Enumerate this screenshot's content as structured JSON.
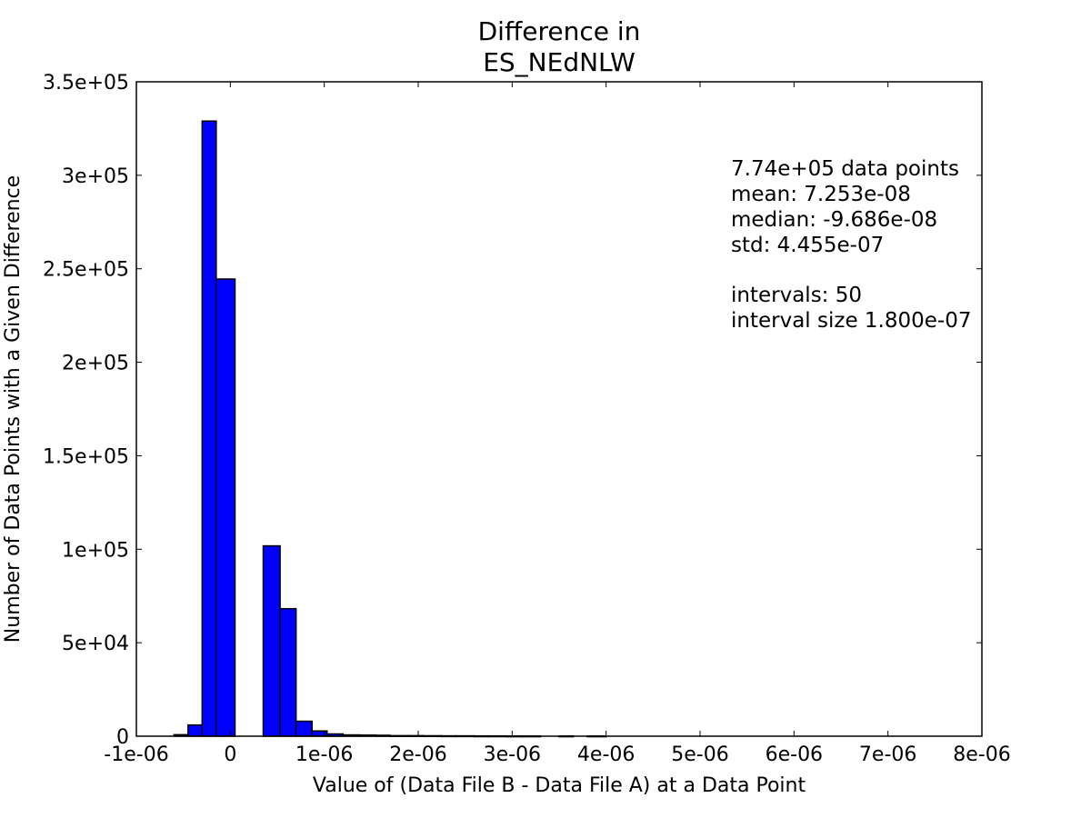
{
  "chart_data": {
    "type": "bar",
    "title": [
      "Difference in",
      "ES_NEdNLW"
    ],
    "xlabel": "Value of (Data File B - Data File A) at a Data Point",
    "ylabel": "Number of Data Points with a Given Difference",
    "xlim": [
      -1e-06,
      8e-06
    ],
    "ylim": [
      0,
      350000
    ],
    "xticks": [
      -1e-06,
      0,
      1e-06,
      2e-06,
      3e-06,
      4e-06,
      5e-06,
      6e-06,
      7e-06,
      8e-06
    ],
    "xtick_labels": [
      "-1e-06",
      "0",
      "1e-06",
      "2e-06",
      "3e-06",
      "4e-06",
      "5e-06",
      "6e-06",
      "7e-06",
      "8e-06"
    ],
    "yticks": [
      0,
      50000,
      100000,
      150000,
      200000,
      250000,
      300000,
      350000
    ],
    "ytick_labels": [
      "0",
      "5e+04",
      "1e+05",
      "1.5e+05",
      "2e+05",
      "2.5e+05",
      "3e+05",
      "3.5e+05"
    ],
    "grid": false,
    "bar_color": "#0000ff",
    "bins": [
      {
        "x0": -6e-07,
        "x1": -4.5e-07,
        "count": 800
      },
      {
        "x0": -4.5e-07,
        "x1": -3e-07,
        "count": 6000
      },
      {
        "x0": -3e-07,
        "x1": -1.5e-07,
        "count": 329000
      },
      {
        "x0": -1.5e-07,
        "x1": 5e-08,
        "count": 244500
      },
      {
        "x0": 3.5e-07,
        "x1": 5.3e-07,
        "count": 101800
      },
      {
        "x0": 5.3e-07,
        "x1": 7e-07,
        "count": 68200
      },
      {
        "x0": 7e-07,
        "x1": 8.7e-07,
        "count": 8000
      },
      {
        "x0": 8.7e-07,
        "x1": 1.03e-06,
        "count": 2800
      },
      {
        "x0": 1.03e-06,
        "x1": 1.2e-06,
        "count": 1200
      },
      {
        "x0": 1.2e-06,
        "x1": 1.38e-06,
        "count": 700
      },
      {
        "x0": 1.38e-06,
        "x1": 1.55e-06,
        "count": 600
      },
      {
        "x0": 1.55e-06,
        "x1": 1.7e-06,
        "count": 500
      },
      {
        "x0": 1.7e-06,
        "x1": 1.9e-06,
        "count": 300
      },
      {
        "x0": 1.9e-06,
        "x1": 2.05e-06,
        "count": 300
      },
      {
        "x0": 2.05e-06,
        "x1": 2.25e-06,
        "count": 250
      },
      {
        "x0": 2.25e-06,
        "x1": 2.4e-06,
        "count": 200
      },
      {
        "x0": 2.4e-06,
        "x1": 2.6e-06,
        "count": 200
      },
      {
        "x0": 2.6e-06,
        "x1": 2.75e-06,
        "count": 150
      },
      {
        "x0": 2.75e-06,
        "x1": 2.95e-06,
        "count": 150
      },
      {
        "x0": 2.95e-06,
        "x1": 3.1e-06,
        "count": 100
      },
      {
        "x0": 3.1e-06,
        "x1": 3.3e-06,
        "count": 100
      },
      {
        "x0": 3.5e-06,
        "x1": 3.65e-06,
        "count": 100
      },
      {
        "x0": 3.8e-06,
        "x1": 4e-06,
        "count": 100
      }
    ],
    "annotations": [
      "7.74e+05 data points",
      "mean: 7.253e-08",
      "median: -9.686e-08",
      "std: 4.455e-07",
      "",
      "intervals: 50",
      "interval size 1.800e-07"
    ]
  }
}
